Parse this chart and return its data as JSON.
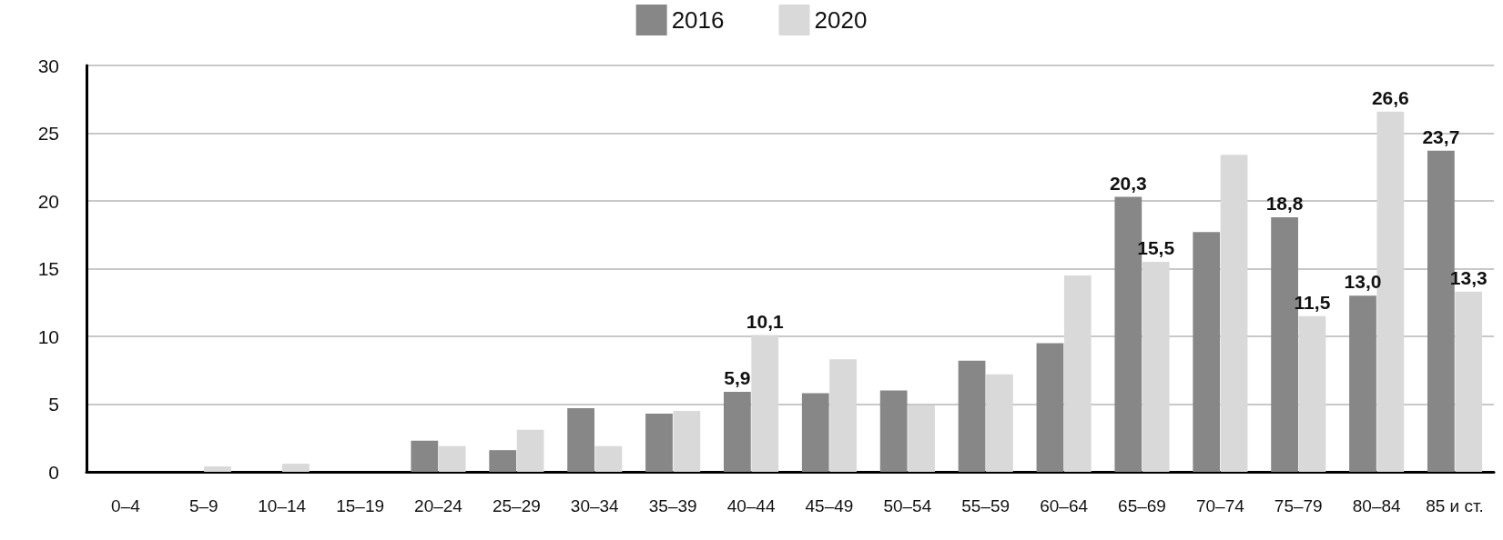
{
  "chart_data": {
    "type": "bar",
    "categories": [
      "0–4",
      "5–9",
      "10–14",
      "15–19",
      "20–24",
      "25–29",
      "30–34",
      "35–39",
      "40–44",
      "45–49",
      "50–54",
      "55–59",
      "60–64",
      "65–69",
      "70–74",
      "75–79",
      "80–84",
      "85 и ст."
    ],
    "series": [
      {
        "name": "2016",
        "color": "#878787",
        "values": [
          0,
          0,
          0,
          0,
          2.3,
          1.6,
          4.7,
          4.3,
          5.9,
          5.8,
          6.0,
          8.2,
          9.5,
          20.3,
          17.7,
          18.8,
          13.0,
          23.7
        ],
        "value_labels": [
          null,
          null,
          null,
          null,
          null,
          null,
          null,
          null,
          "5,9",
          null,
          null,
          null,
          null,
          "20,3",
          null,
          "18,8",
          "13,0",
          "23,7"
        ]
      },
      {
        "name": "2020",
        "color": "#d9d9d9",
        "values": [
          0,
          0.4,
          0.6,
          0,
          1.9,
          3.1,
          1.9,
          4.5,
          10.1,
          8.3,
          4.9,
          7.2,
          14.5,
          15.5,
          23.4,
          11.5,
          26.6,
          13.3
        ],
        "value_labels": [
          null,
          null,
          null,
          null,
          null,
          null,
          null,
          null,
          "10,1",
          null,
          null,
          null,
          null,
          "15,5",
          null,
          "11,5",
          "26,6",
          "13,3"
        ]
      }
    ],
    "ylim": [
      0,
      30
    ],
    "yticks": [
      0,
      5,
      10,
      15,
      20,
      25,
      30
    ],
    "grid": "y",
    "legend": "top"
  }
}
